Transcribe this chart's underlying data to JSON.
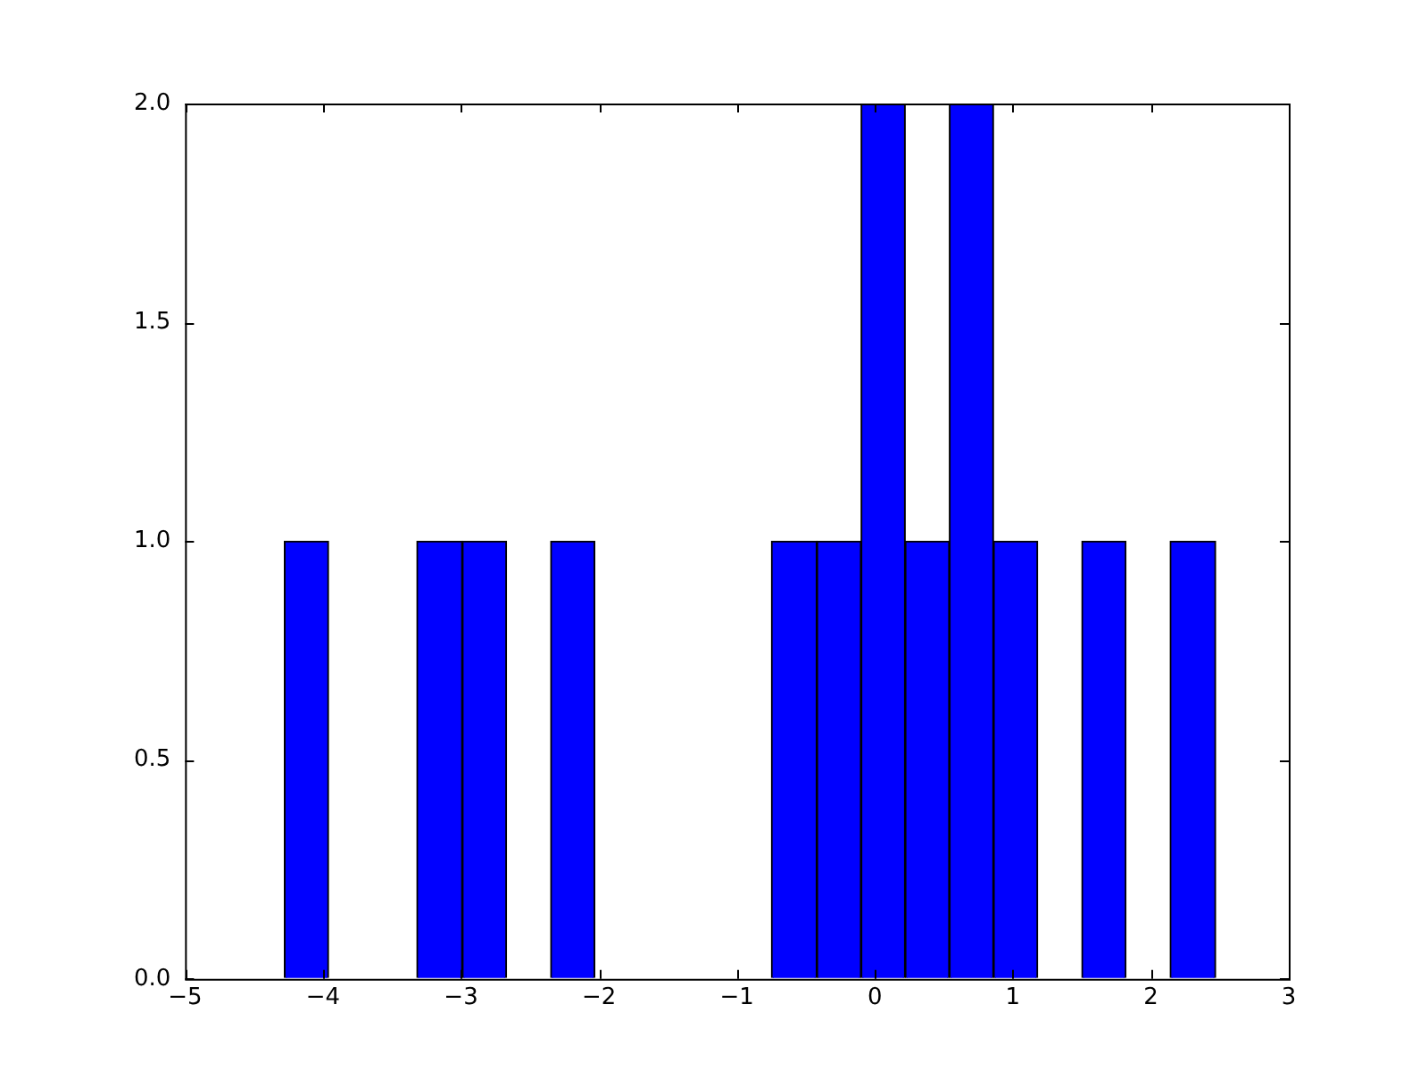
{
  "chart_data": {
    "type": "histogram",
    "bins": [
      -4.28,
      -3.96,
      -3.64,
      -3.32,
      -2.99,
      -2.67,
      -2.35,
      -2.03,
      -1.71,
      -1.39,
      -1.07,
      -0.75,
      -0.42,
      -0.1,
      0.22,
      0.54,
      0.86,
      1.18,
      1.5,
      1.82,
      2.14,
      2.47
    ],
    "values": [
      1,
      0,
      0,
      1,
      1,
      0,
      1,
      0,
      0,
      0,
      0,
      1,
      1,
      2,
      1,
      2,
      1,
      0,
      1,
      0,
      1
    ],
    "color": "#0000ff",
    "xlim": [
      -5,
      3
    ],
    "xticks": [
      -5,
      -4,
      -3,
      -2,
      -1,
      0,
      1,
      2,
      3
    ],
    "ylim": [
      0,
      2
    ],
    "yticks": [
      {
        "value": 0,
        "label": "0.0"
      },
      {
        "value": 0.5,
        "label": "0.5"
      },
      {
        "value": 1,
        "label": "1.0"
      },
      {
        "value": 1.5,
        "label": "1.5"
      },
      {
        "value": 2,
        "label": "2.0"
      }
    ],
    "grid": false
  }
}
